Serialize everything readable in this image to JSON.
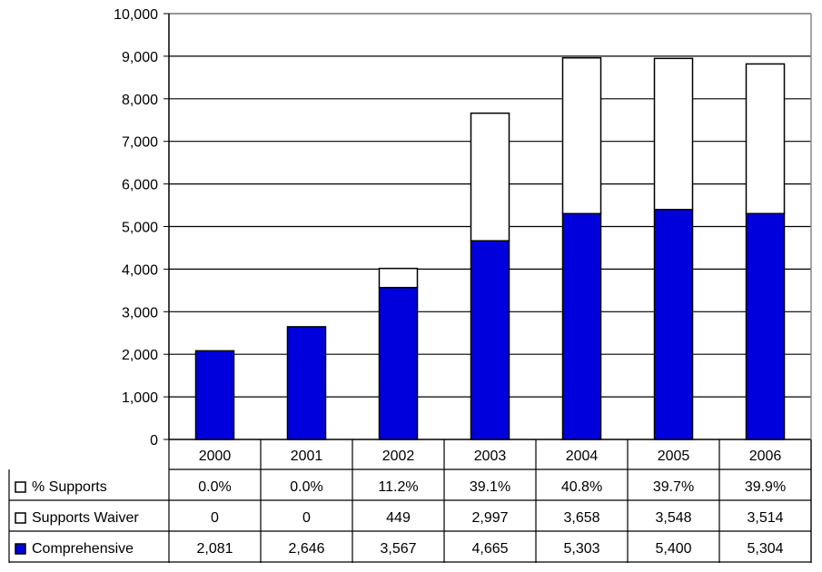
{
  "chart_data": {
    "type": "bar",
    "stacked": true,
    "title": "",
    "categories": [
      "2000",
      "2001",
      "2002",
      "2003",
      "2004",
      "2005",
      "2006"
    ],
    "ylim": [
      0,
      10000
    ],
    "yticks": [
      "0",
      "1,000",
      "2,000",
      "3,000",
      "4,000",
      "5,000",
      "6,000",
      "7,000",
      "8,000",
      "9,000",
      "10,000"
    ],
    "grid": true,
    "colors": {
      "comprehensive": "#0000dd",
      "supports": "#ffffff",
      "stroke": "#000000"
    },
    "series": [
      {
        "name": "Comprehensive",
        "values": [
          2081,
          2646,
          3567,
          4665,
          5303,
          5400,
          5304
        ]
      },
      {
        "name": "Supports Waiver",
        "values": [
          0,
          0,
          449,
          2997,
          3658,
          3548,
          3514
        ]
      }
    ],
    "table": {
      "rows": [
        {
          "label": "% Supports",
          "marker": "white",
          "values": [
            "0.0%",
            "0.0%",
            "11.2%",
            "39.1%",
            "40.8%",
            "39.7%",
            "39.9%"
          ]
        },
        {
          "label": "Supports Waiver",
          "marker": "white",
          "values": [
            "0",
            "0",
            "449",
            "2,997",
            "3,658",
            "3,548",
            "3,514"
          ]
        },
        {
          "label": "Comprehensive",
          "marker": "blue",
          "values": [
            "2,081",
            "2,646",
            "3,567",
            "4,665",
            "5,303",
            "5,400",
            "5,304"
          ]
        }
      ]
    }
  }
}
